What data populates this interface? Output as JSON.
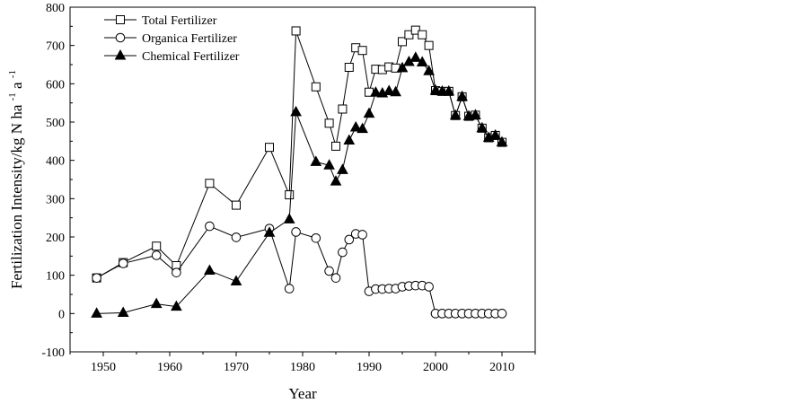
{
  "chart_data": {
    "type": "line",
    "xlabel": "Year",
    "ylabel": "Fertilization Intensity/kg N ha",
    "ylabel_sup1": "-1",
    "ylabel_mid": " a",
    "ylabel_sup2": "-1",
    "xlim": [
      1945,
      2015
    ],
    "ylim": [
      -100,
      800
    ],
    "xticks": [
      1950,
      1960,
      1970,
      1980,
      1990,
      2000,
      2010
    ],
    "yticks": [
      -100,
      0,
      100,
      200,
      300,
      400,
      500,
      600,
      700,
      800
    ],
    "legend_position": "top-left",
    "series": [
      {
        "name": "Total Fertilizer",
        "marker": "square-open",
        "x": [
          1949,
          1953,
          1958,
          1961,
          1966,
          1970,
          1975,
          1978,
          1979,
          1982,
          1984,
          1985,
          1986,
          1987,
          1988,
          1989,
          1990,
          1991,
          1992,
          1993,
          1994,
          1995,
          1996,
          1997,
          1998,
          1999,
          2000,
          2001,
          2002,
          2003,
          2004,
          2005,
          2006,
          2007,
          2008,
          2009,
          2010
        ],
        "y": [
          93,
          133,
          176,
          125,
          340,
          283,
          434,
          310,
          738,
          592,
          497,
          437,
          534,
          643,
          694,
          687,
          578,
          638,
          637,
          644,
          641,
          710,
          728,
          740,
          728,
          700,
          582,
          580,
          580,
          517,
          566,
          515,
          518,
          484,
          459,
          465,
          447
        ]
      },
      {
        "name": "Organica Fertilizer",
        "marker": "circle-open",
        "x": [
          1949,
          1953,
          1958,
          1961,
          1966,
          1970,
          1975,
          1978,
          1979,
          1982,
          1984,
          1985,
          1986,
          1987,
          1988,
          1989,
          1990,
          1991,
          1992,
          1993,
          1994,
          1995,
          1996,
          1997,
          1998,
          1999,
          2000,
          2001,
          2002,
          2003,
          2004,
          2005,
          2006,
          2007,
          2008,
          2009,
          2010
        ],
        "y": [
          93,
          131,
          152,
          107,
          228,
          199,
          222,
          65,
          213,
          197,
          111,
          93,
          160,
          193,
          208,
          206,
          58,
          64,
          64,
          65,
          65,
          70,
          72,
          73,
          73,
          70,
          0,
          0,
          0,
          0,
          0,
          0,
          0,
          0,
          0,
          0,
          0
        ]
      },
      {
        "name": "Chemical Fertilizer",
        "marker": "triangle-filled",
        "x": [
          1949,
          1953,
          1958,
          1961,
          1966,
          1970,
          1975,
          1978,
          1979,
          1982,
          1984,
          1985,
          1986,
          1987,
          1988,
          1989,
          1990,
          1991,
          1992,
          1993,
          1994,
          1995,
          1996,
          1997,
          1998,
          1999,
          2000,
          2001,
          2002,
          2003,
          2004,
          2005,
          2006,
          2007,
          2008,
          2009,
          2010
        ],
        "y": [
          0,
          2,
          25,
          18,
          112,
          84,
          211,
          246,
          526,
          396,
          387,
          345,
          375,
          452,
          486,
          482,
          522,
          577,
          575,
          581,
          578,
          641,
          657,
          668,
          656,
          633,
          582,
          580,
          580,
          517,
          566,
          515,
          518,
          484,
          459,
          465,
          447
        ]
      }
    ]
  }
}
